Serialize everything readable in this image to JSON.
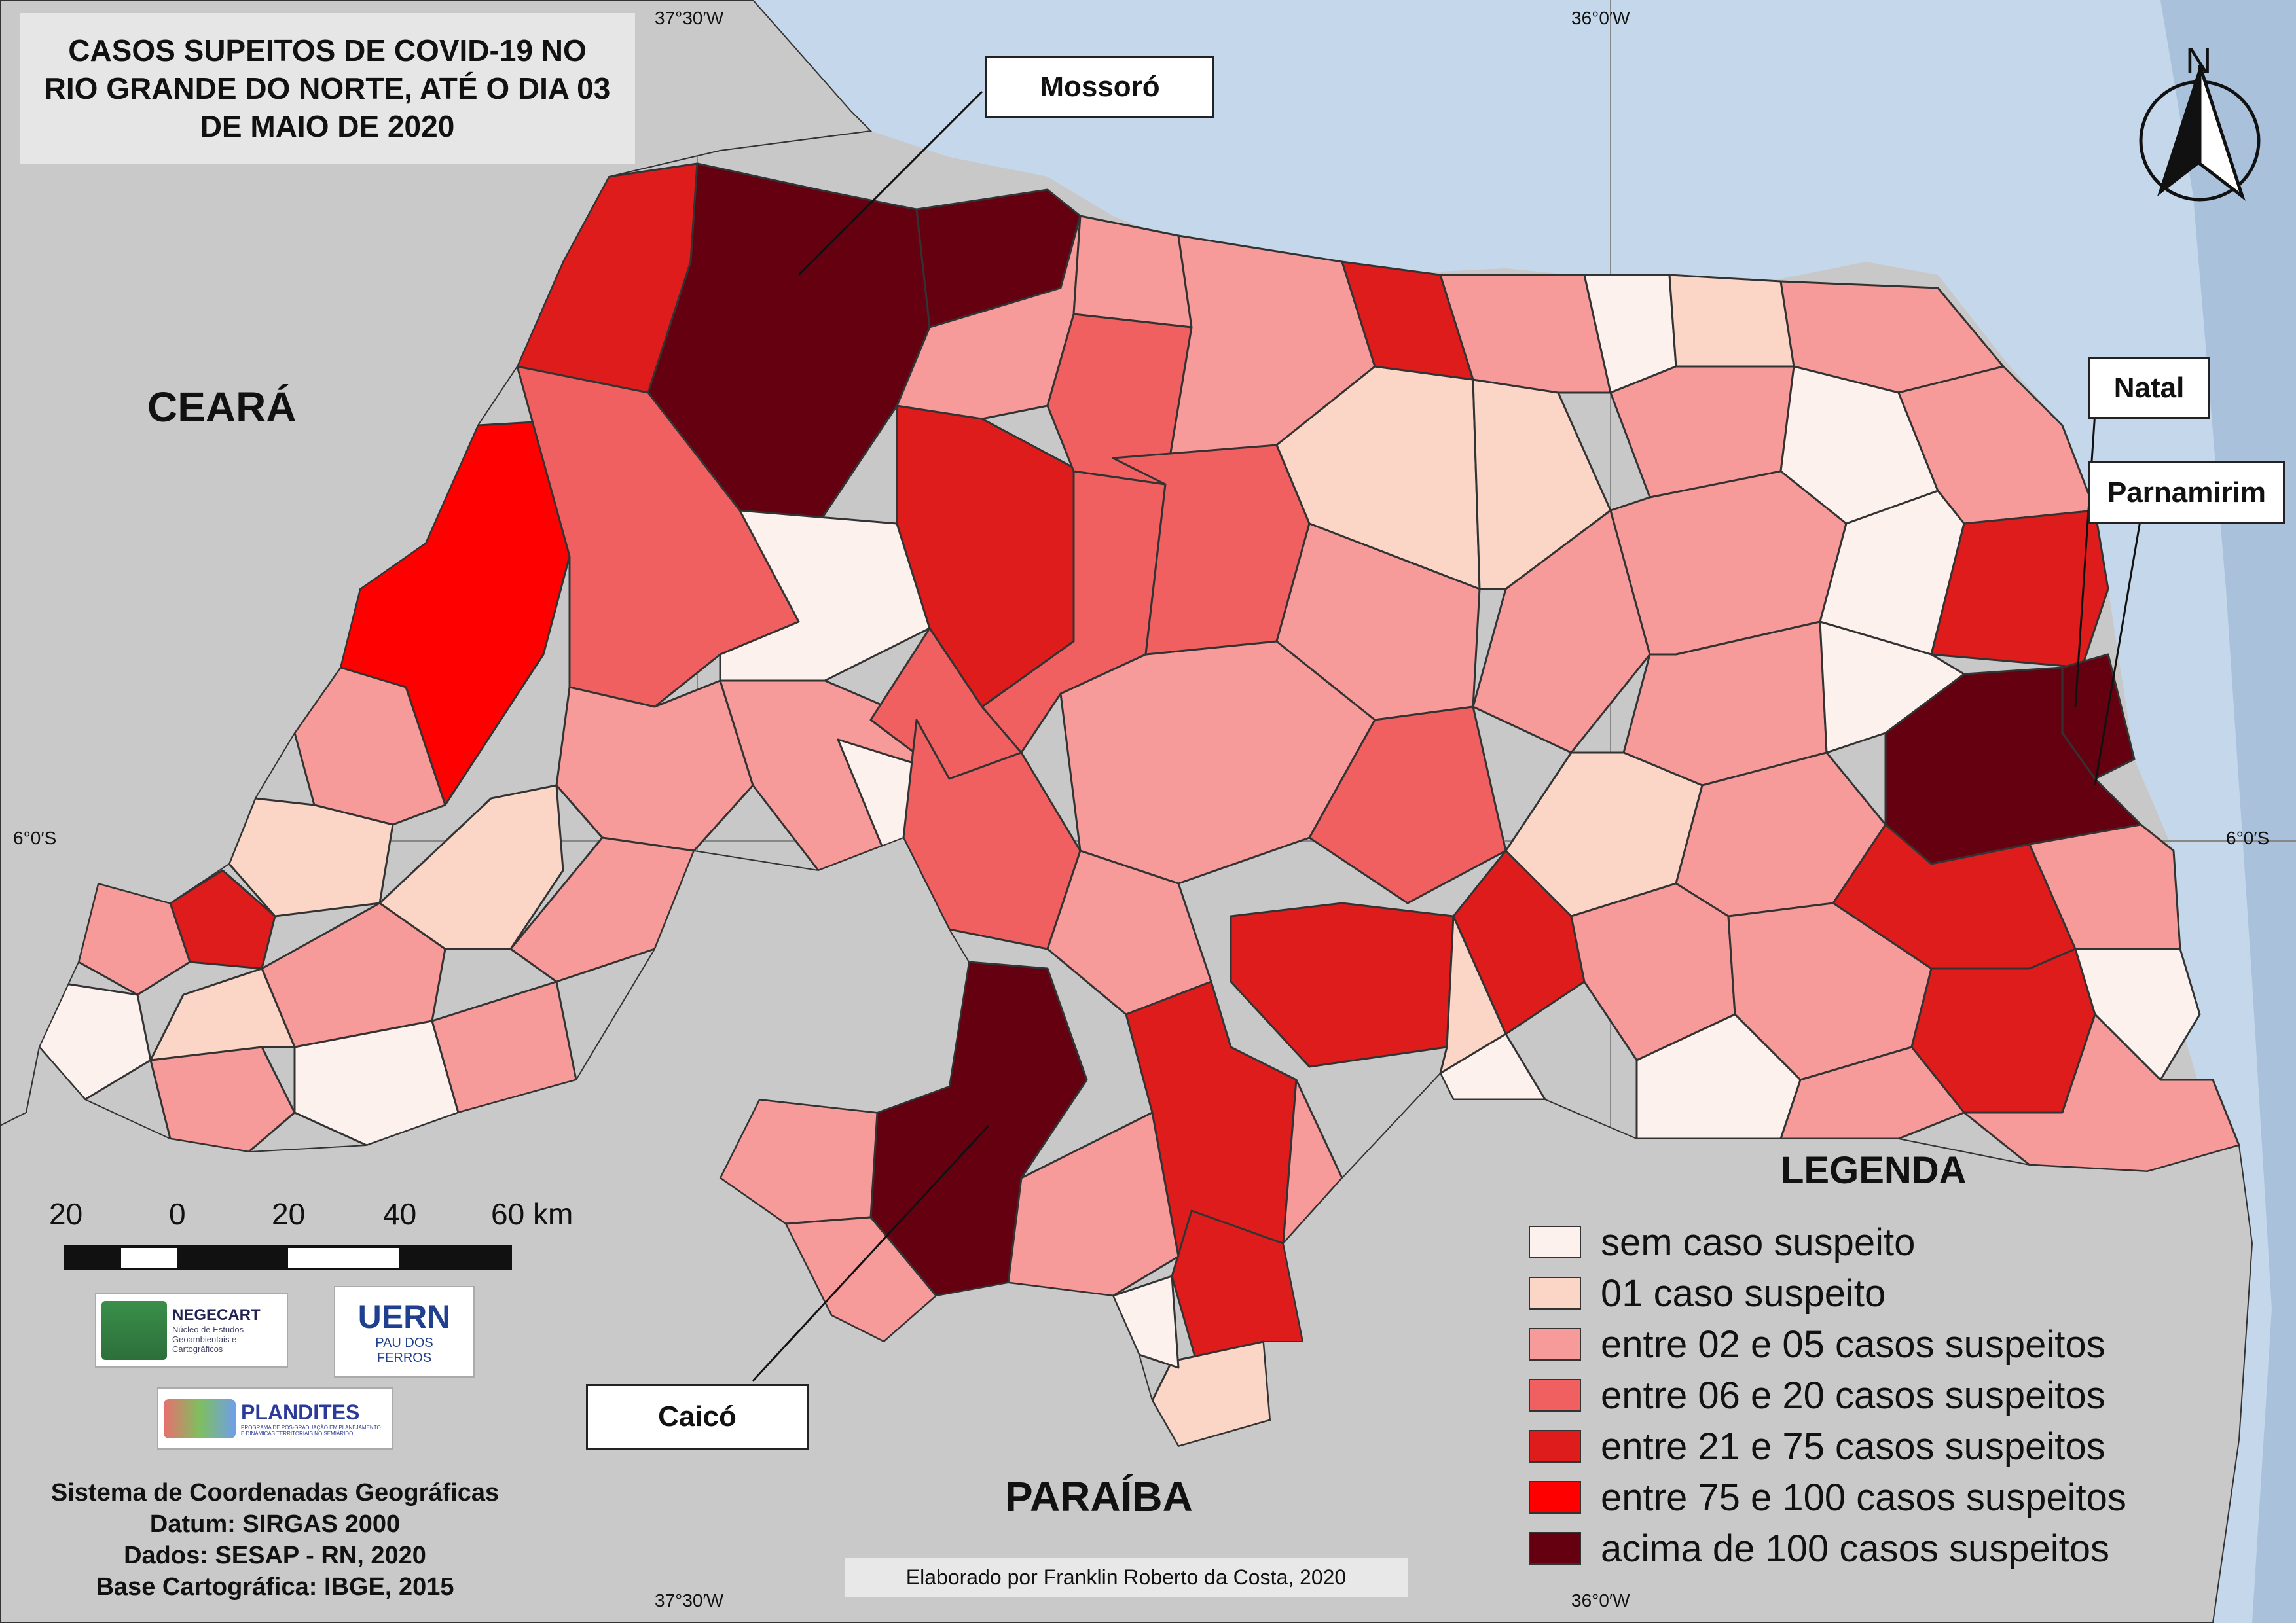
{
  "title": {
    "line1": "CASOS SUPEITOS DE COVID-19 NO",
    "line2": "RIO GRANDE DO NORTE, ATÉ O DIA 03",
    "line3": "DE MAIO DE 2020"
  },
  "states": {
    "ceara": "CEARÁ",
    "paraiba": "PARAÍBA"
  },
  "cities": {
    "mossoro": "Mossoró",
    "natal": "Natal",
    "parnamirim": "Parnamirim",
    "caico": "Caicó"
  },
  "north_arrow": "N",
  "coordinates": {
    "top_left": "37°30′W",
    "top_right": "36°0′W",
    "bottom_left": "37°30′W",
    "bottom_right": "36°0′W",
    "left_lat": "6°0′S",
    "right_lat": "6°0′S"
  },
  "legend": {
    "title": "LEGENDA",
    "items": [
      {
        "label": "sem caso suspeito",
        "color": "#fdf1ee"
      },
      {
        "label": "01 caso suspeito",
        "color": "#fbd5c5"
      },
      {
        "label": "entre 02 e 05 casos suspeitos",
        "color": "#f79a9a"
      },
      {
        "label": "entre 06 e 20 casos suspeitos",
        "color": "#f06060"
      },
      {
        "label": "entre 21 e 75 casos suspeitos",
        "color": "#de1c1c"
      },
      {
        "label": "entre 75 e 100 casos suspeitos",
        "color": "#ff0000"
      },
      {
        "label": "acima de 100 casos suspeitos",
        "color": "#650010"
      }
    ]
  },
  "scale": {
    "labels": [
      "20",
      "0",
      "20",
      "40",
      "60 km"
    ]
  },
  "logos": {
    "negecart": {
      "name": "NEGECART",
      "sub": "Núcleo de Estudos Geoambientais e Cartográficos"
    },
    "uern": {
      "name": "UERN",
      "sub1": "PAU DOS",
      "sub2": "FERROS"
    },
    "plandites": {
      "name": "PLANDITES",
      "sub": "PROGRAMA DE PÓS-GRADUAÇÃO EM PLANEJAMENTO E DINÂMICAS TERRITORIAIS NO SEMIÁRIDO"
    }
  },
  "metadata": {
    "line1": "Sistema de Coordenadas Geográficas",
    "line2": "Datum: SIRGAS 2000",
    "line3": "Dados: SESAP - RN, 2020",
    "line4": "Base Cartográfica: IBGE, 2015"
  },
  "credit": "Elaborado por Franklin Roberto da Costa, 2020",
  "colors": {
    "ocean": "#c5d7ea",
    "neighbor": "#c9c9c9",
    "border": "#333333"
  }
}
